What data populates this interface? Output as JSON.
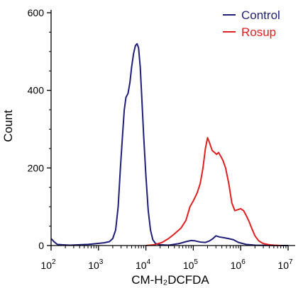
{
  "chart_data": {
    "type": "line",
    "xlabel": "CM-H₂DCFDA",
    "ylabel": "Count",
    "x_scale": "log",
    "xlim": [
      100,
      10000000
    ],
    "ylim": [
      0,
      600
    ],
    "x_ticks": [
      {
        "value": 100,
        "base": "10",
        "exp": "2"
      },
      {
        "value": 1000,
        "base": "10",
        "exp": "3"
      },
      {
        "value": 10000,
        "base": "10",
        "exp": "4"
      },
      {
        "value": 100000,
        "base": "10",
        "exp": "5"
      },
      {
        "value": 1000000,
        "base": "10",
        "exp": "6"
      },
      {
        "value": 10000000,
        "base": "10",
        "exp": "7"
      }
    ],
    "y_ticks": [
      "0",
      "200",
      "400",
      "600"
    ],
    "grid": false,
    "legend_position": "top-right",
    "series": [
      {
        "name": "Control",
        "color": "#1f1f7a",
        "points": [
          [
            100,
            18
          ],
          [
            115,
            10
          ],
          [
            135,
            3
          ],
          [
            170,
            2
          ],
          [
            250,
            1
          ],
          [
            400,
            2
          ],
          [
            600,
            3
          ],
          [
            900,
            5
          ],
          [
            1300,
            7
          ],
          [
            1700,
            10
          ],
          [
            2000,
            18
          ],
          [
            2300,
            40
          ],
          [
            2600,
            100
          ],
          [
            2900,
            200
          ],
          [
            3200,
            280
          ],
          [
            3500,
            350
          ],
          [
            3800,
            382
          ],
          [
            4200,
            392
          ],
          [
            4600,
            420
          ],
          [
            5000,
            460
          ],
          [
            5500,
            495
          ],
          [
            6000,
            515
          ],
          [
            6500,
            520
          ],
          [
            7000,
            510
          ],
          [
            7600,
            460
          ],
          [
            8200,
            380
          ],
          [
            9000,
            280
          ],
          [
            10000,
            180
          ],
          [
            11200,
            90
          ],
          [
            12500,
            40
          ],
          [
            14000,
            15
          ],
          [
            16000,
            5
          ],
          [
            20000,
            2
          ],
          [
            30000,
            1
          ],
          [
            50000,
            5
          ],
          [
            70000,
            10
          ],
          [
            90000,
            13
          ],
          [
            110000,
            12
          ],
          [
            140000,
            9
          ],
          [
            180000,
            8
          ],
          [
            220000,
            12
          ],
          [
            260000,
            18
          ],
          [
            300000,
            25
          ],
          [
            360000,
            22
          ],
          [
            450000,
            20
          ],
          [
            550000,
            18
          ],
          [
            700000,
            15
          ],
          [
            900000,
            8
          ],
          [
            1300000,
            3
          ],
          [
            2000000,
            1
          ],
          [
            5000000,
            0
          ],
          [
            10000000,
            0
          ]
        ]
      },
      {
        "name": "Rosup",
        "color": "#e02020",
        "points": [
          [
            10000,
            0
          ],
          [
            15000,
            2
          ],
          [
            22000,
            8
          ],
          [
            30000,
            18
          ],
          [
            40000,
            30
          ],
          [
            55000,
            45
          ],
          [
            70000,
            65
          ],
          [
            85000,
            100
          ],
          [
            100000,
            115
          ],
          [
            120000,
            135
          ],
          [
            140000,
            160
          ],
          [
            160000,
            200
          ],
          [
            180000,
            250
          ],
          [
            200000,
            278
          ],
          [
            220000,
            265
          ],
          [
            250000,
            245
          ],
          [
            280000,
            240
          ],
          [
            310000,
            235
          ],
          [
            340000,
            240
          ],
          [
            380000,
            230
          ],
          [
            420000,
            220
          ],
          [
            480000,
            200
          ],
          [
            560000,
            160
          ],
          [
            650000,
            110
          ],
          [
            750000,
            90
          ],
          [
            850000,
            92
          ],
          [
            1000000,
            95
          ],
          [
            1150000,
            90
          ],
          [
            1300000,
            78
          ],
          [
            1500000,
            62
          ],
          [
            1700000,
            45
          ],
          [
            2000000,
            25
          ],
          [
            2400000,
            12
          ],
          [
            3000000,
            5
          ],
          [
            4000000,
            2
          ],
          [
            5000000,
            1
          ],
          [
            7000000,
            0
          ]
        ]
      }
    ]
  }
}
